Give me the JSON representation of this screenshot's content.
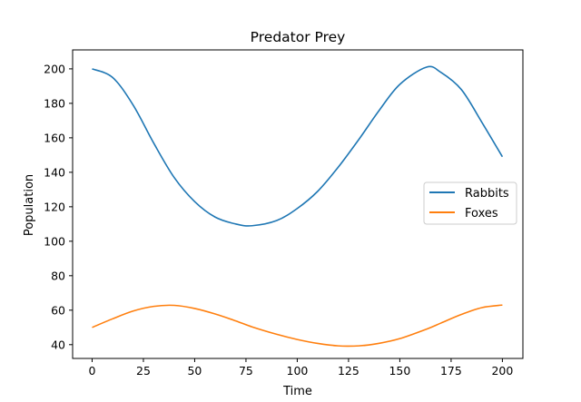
{
  "chart_data": {
    "type": "line",
    "title": "Predator Prey",
    "xlabel": "Time",
    "ylabel": "Population",
    "xlim": [
      -9.5,
      210
    ],
    "ylim": [
      32,
      211
    ],
    "xticks": [
      0,
      25,
      50,
      75,
      100,
      125,
      150,
      175,
      200
    ],
    "yticks": [
      40,
      60,
      80,
      100,
      120,
      140,
      160,
      180,
      200
    ],
    "grid": false,
    "legend_position": "right",
    "x": [
      0,
      10,
      20,
      30,
      40,
      50,
      60,
      70,
      78,
      90,
      100,
      110,
      120,
      130,
      140,
      150,
      163,
      170,
      180,
      190,
      200
    ],
    "series": [
      {
        "name": "Rabbits",
        "color": "#1f77b4",
        "values": [
          200,
          195,
          179,
          157,
          137,
          123,
          114,
          110,
          109,
          112,
          119,
          129,
          143,
          159,
          176,
          191,
          201,
          198,
          188,
          169,
          149
        ]
      },
      {
        "name": "Foxes",
        "color": "#ff7f0e",
        "values": [
          50,
          55,
          59.5,
          62.2,
          62.8,
          61,
          57.8,
          53.8,
          50.3,
          46,
          43,
          40.7,
          39.3,
          39.3,
          40.8,
          43.5,
          49,
          52.5,
          57.5,
          61.5,
          63
        ]
      }
    ]
  }
}
